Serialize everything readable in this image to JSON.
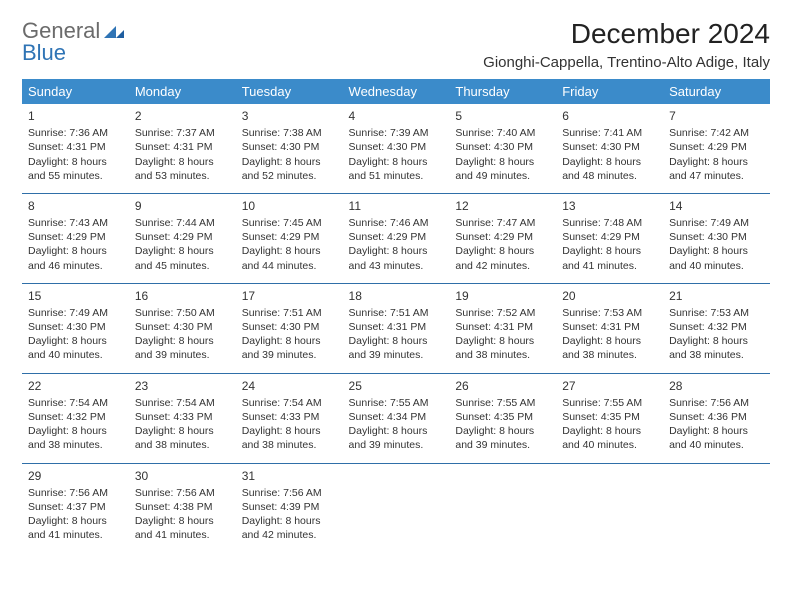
{
  "logo": {
    "part1": "General",
    "part2": "Blue"
  },
  "title": "December 2024",
  "location": "Gionghi-Cappella, Trentino-Alto Adige, Italy",
  "colors": {
    "header_bg": "#3b8bca",
    "header_text": "#ffffff",
    "row_divider": "#2f6fa8",
    "text": "#333333",
    "logo_gray": "#6b6b6b",
    "logo_blue": "#2f74b5"
  },
  "fonts": {
    "title_size_pt": 21,
    "location_size_pt": 11,
    "header_size_pt": 10,
    "body_size_pt": 8
  },
  "day_headers": [
    "Sunday",
    "Monday",
    "Tuesday",
    "Wednesday",
    "Thursday",
    "Friday",
    "Saturday"
  ],
  "weeks": [
    [
      {
        "num": "1",
        "sunrise": "Sunrise: 7:36 AM",
        "sunset": "Sunset: 4:31 PM",
        "daylight": "Daylight: 8 hours and 55 minutes."
      },
      {
        "num": "2",
        "sunrise": "Sunrise: 7:37 AM",
        "sunset": "Sunset: 4:31 PM",
        "daylight": "Daylight: 8 hours and 53 minutes."
      },
      {
        "num": "3",
        "sunrise": "Sunrise: 7:38 AM",
        "sunset": "Sunset: 4:30 PM",
        "daylight": "Daylight: 8 hours and 52 minutes."
      },
      {
        "num": "4",
        "sunrise": "Sunrise: 7:39 AM",
        "sunset": "Sunset: 4:30 PM",
        "daylight": "Daylight: 8 hours and 51 minutes."
      },
      {
        "num": "5",
        "sunrise": "Sunrise: 7:40 AM",
        "sunset": "Sunset: 4:30 PM",
        "daylight": "Daylight: 8 hours and 49 minutes."
      },
      {
        "num": "6",
        "sunrise": "Sunrise: 7:41 AM",
        "sunset": "Sunset: 4:30 PM",
        "daylight": "Daylight: 8 hours and 48 minutes."
      },
      {
        "num": "7",
        "sunrise": "Sunrise: 7:42 AM",
        "sunset": "Sunset: 4:29 PM",
        "daylight": "Daylight: 8 hours and 47 minutes."
      }
    ],
    [
      {
        "num": "8",
        "sunrise": "Sunrise: 7:43 AM",
        "sunset": "Sunset: 4:29 PM",
        "daylight": "Daylight: 8 hours and 46 minutes."
      },
      {
        "num": "9",
        "sunrise": "Sunrise: 7:44 AM",
        "sunset": "Sunset: 4:29 PM",
        "daylight": "Daylight: 8 hours and 45 minutes."
      },
      {
        "num": "10",
        "sunrise": "Sunrise: 7:45 AM",
        "sunset": "Sunset: 4:29 PM",
        "daylight": "Daylight: 8 hours and 44 minutes."
      },
      {
        "num": "11",
        "sunrise": "Sunrise: 7:46 AM",
        "sunset": "Sunset: 4:29 PM",
        "daylight": "Daylight: 8 hours and 43 minutes."
      },
      {
        "num": "12",
        "sunrise": "Sunrise: 7:47 AM",
        "sunset": "Sunset: 4:29 PM",
        "daylight": "Daylight: 8 hours and 42 minutes."
      },
      {
        "num": "13",
        "sunrise": "Sunrise: 7:48 AM",
        "sunset": "Sunset: 4:29 PM",
        "daylight": "Daylight: 8 hours and 41 minutes."
      },
      {
        "num": "14",
        "sunrise": "Sunrise: 7:49 AM",
        "sunset": "Sunset: 4:30 PM",
        "daylight": "Daylight: 8 hours and 40 minutes."
      }
    ],
    [
      {
        "num": "15",
        "sunrise": "Sunrise: 7:49 AM",
        "sunset": "Sunset: 4:30 PM",
        "daylight": "Daylight: 8 hours and 40 minutes."
      },
      {
        "num": "16",
        "sunrise": "Sunrise: 7:50 AM",
        "sunset": "Sunset: 4:30 PM",
        "daylight": "Daylight: 8 hours and 39 minutes."
      },
      {
        "num": "17",
        "sunrise": "Sunrise: 7:51 AM",
        "sunset": "Sunset: 4:30 PM",
        "daylight": "Daylight: 8 hours and 39 minutes."
      },
      {
        "num": "18",
        "sunrise": "Sunrise: 7:51 AM",
        "sunset": "Sunset: 4:31 PM",
        "daylight": "Daylight: 8 hours and 39 minutes."
      },
      {
        "num": "19",
        "sunrise": "Sunrise: 7:52 AM",
        "sunset": "Sunset: 4:31 PM",
        "daylight": "Daylight: 8 hours and 38 minutes."
      },
      {
        "num": "20",
        "sunrise": "Sunrise: 7:53 AM",
        "sunset": "Sunset: 4:31 PM",
        "daylight": "Daylight: 8 hours and 38 minutes."
      },
      {
        "num": "21",
        "sunrise": "Sunrise: 7:53 AM",
        "sunset": "Sunset: 4:32 PM",
        "daylight": "Daylight: 8 hours and 38 minutes."
      }
    ],
    [
      {
        "num": "22",
        "sunrise": "Sunrise: 7:54 AM",
        "sunset": "Sunset: 4:32 PM",
        "daylight": "Daylight: 8 hours and 38 minutes."
      },
      {
        "num": "23",
        "sunrise": "Sunrise: 7:54 AM",
        "sunset": "Sunset: 4:33 PM",
        "daylight": "Daylight: 8 hours and 38 minutes."
      },
      {
        "num": "24",
        "sunrise": "Sunrise: 7:54 AM",
        "sunset": "Sunset: 4:33 PM",
        "daylight": "Daylight: 8 hours and 38 minutes."
      },
      {
        "num": "25",
        "sunrise": "Sunrise: 7:55 AM",
        "sunset": "Sunset: 4:34 PM",
        "daylight": "Daylight: 8 hours and 39 minutes."
      },
      {
        "num": "26",
        "sunrise": "Sunrise: 7:55 AM",
        "sunset": "Sunset: 4:35 PM",
        "daylight": "Daylight: 8 hours and 39 minutes."
      },
      {
        "num": "27",
        "sunrise": "Sunrise: 7:55 AM",
        "sunset": "Sunset: 4:35 PM",
        "daylight": "Daylight: 8 hours and 40 minutes."
      },
      {
        "num": "28",
        "sunrise": "Sunrise: 7:56 AM",
        "sunset": "Sunset: 4:36 PM",
        "daylight": "Daylight: 8 hours and 40 minutes."
      }
    ],
    [
      {
        "num": "29",
        "sunrise": "Sunrise: 7:56 AM",
        "sunset": "Sunset: 4:37 PM",
        "daylight": "Daylight: 8 hours and 41 minutes."
      },
      {
        "num": "30",
        "sunrise": "Sunrise: 7:56 AM",
        "sunset": "Sunset: 4:38 PM",
        "daylight": "Daylight: 8 hours and 41 minutes."
      },
      {
        "num": "31",
        "sunrise": "Sunrise: 7:56 AM",
        "sunset": "Sunset: 4:39 PM",
        "daylight": "Daylight: 8 hours and 42 minutes."
      },
      null,
      null,
      null,
      null
    ]
  ]
}
